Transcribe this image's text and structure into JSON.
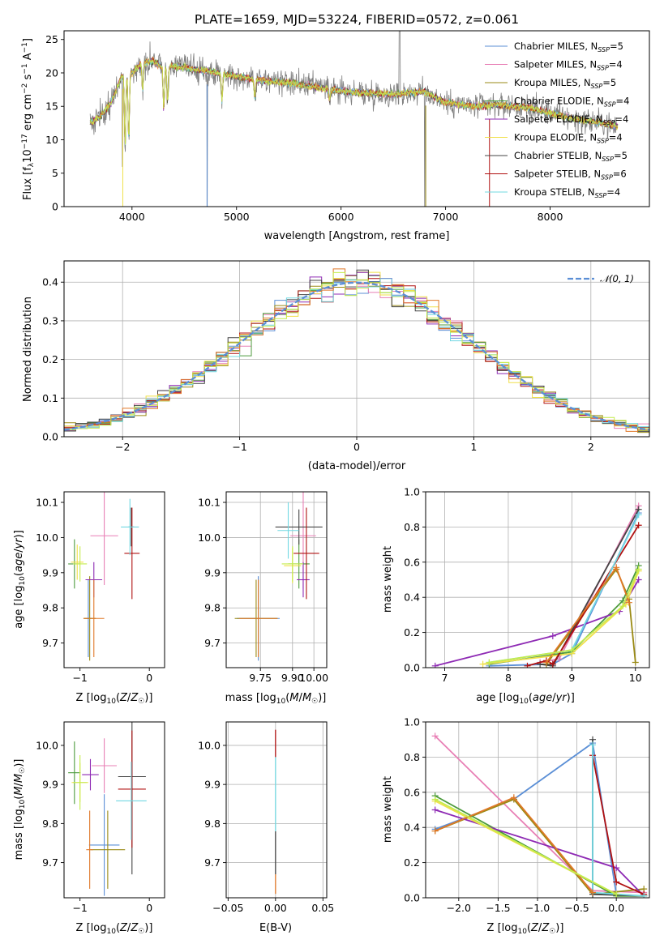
{
  "title": "PLATE=1659, MJD=53224, FIBERID=0572, z=0.061",
  "colors": {
    "Chabrier MILES": "#5b8fd6",
    "Salpeter MILES": "#e87fb5",
    "Kroupa MILES": "#9a8a14",
    "Chabrier ELODIE": "#4c9a3c",
    "Salpeter ELODIE": "#8e2ab4",
    "Kroupa ELODIE": "#f0e04a",
    "Chabrier STELIB": "#444444",
    "Salpeter STELIB": "#b01010",
    "Kroupa STELIB": "#72d8e2",
    "extra_orange": "#e07828",
    "extra_lime": "#c4ec4c",
    "data": "#808080",
    "gaussian": "#5b8fd6"
  },
  "chart_data": [
    {
      "type": "line",
      "panel": "spectrum",
      "xlabel": "wavelength [Angstrom, rest frame]",
      "ylabel": "Flux [f_λ 10^-17 erg cm^-2 s^-1 A^-1]",
      "xlim": [
        3350,
        8950
      ],
      "ylim": [
        0,
        26.3
      ],
      "xticks": [
        4000,
        5000,
        6000,
        7000,
        8000
      ],
      "yticks": [
        0,
        5,
        10,
        15,
        20,
        25
      ],
      "grid": false,
      "legend_position": "top-right",
      "legend": [
        {
          "model": "Chabrier MILES",
          "n_ssp": "5"
        },
        {
          "model": "Salpeter MILES",
          "n_ssp": "4"
        },
        {
          "model": "Kroupa MILES",
          "n_ssp": "5"
        },
        {
          "model": "Chabrier ELODIE",
          "n_ssp": "4"
        },
        {
          "model": "Salpeter ELODIE",
          "n_ssp": "4"
        },
        {
          "model": "Kroupa ELODIE",
          "n_ssp": "4"
        },
        {
          "model": "Chabrier STELIB",
          "n_ssp": "5"
        },
        {
          "model": "Salpeter STELIB",
          "n_ssp": "6"
        },
        {
          "model": "Kroupa STELIB",
          "n_ssp": "4"
        }
      ],
      "continuum": {
        "x": [
          3600,
          3700,
          3800,
          3900,
          4000,
          4100,
          4200,
          4300,
          4400,
          4500,
          4700,
          5000,
          5200,
          5500,
          5800,
          6000,
          6200,
          6500,
          6800,
          7000,
          7300,
          7500,
          7800,
          8000,
          8200,
          8500,
          8650
        ],
        "y": [
          12.5,
          13.5,
          15.5,
          19.5,
          20.0,
          21.5,
          21.8,
          20.8,
          21.0,
          20.8,
          20.3,
          19.5,
          19.0,
          18.5,
          17.8,
          17.3,
          17.0,
          16.8,
          17.2,
          15.5,
          15.0,
          15.2,
          14.8,
          14.0,
          13.2,
          12.5,
          12.0
        ]
      }
    },
    {
      "type": "line",
      "panel": "residuals",
      "xlabel": "(data-model)/error",
      "ylabel": "Normed distribution",
      "xlim": [
        -2.5,
        2.5
      ],
      "ylim": [
        0,
        0.455
      ],
      "xticks": [
        -2,
        -1,
        0,
        1,
        2
      ],
      "yticks": [
        0.0,
        0.1,
        0.2,
        0.3,
        0.4
      ],
      "grid": true,
      "legend_position": "top-right",
      "legend_label": "N(0,1)",
      "bin_width": 0.1
    },
    {
      "type": "scatter",
      "panel": "age-vs-Z",
      "xlabel": "Z [log10(Z/Z☉)]",
      "ylabel": "age [log10(age/yr)]",
      "xlim": [
        -1.23,
        0.22
      ],
      "ylim": [
        9.63,
        10.13
      ],
      "xticks": [
        -1,
        0
      ],
      "yticks": [
        9.7,
        9.8,
        9.9,
        10.0,
        10.1
      ],
      "grid": false,
      "points": [
        {
          "model": "Chabrier MILES",
          "x": -0.88,
          "y": 9.77,
          "xerr": 0.05,
          "yerr": 0.11
        },
        {
          "model": "Salpeter MILES",
          "x": -0.65,
          "y": 10.005,
          "xerr": 0.2,
          "yerr": 0.14
        },
        {
          "model": "Kroupa MILES",
          "x": -0.86,
          "y": 9.77,
          "xerr": 0.09,
          "yerr": 0.12
        },
        {
          "model": "Chabrier ELODIE",
          "x": -1.08,
          "y": 9.925,
          "xerr": 0.09,
          "yerr": 0.07
        },
        {
          "model": "Salpeter ELODIE",
          "x": -0.8,
          "y": 9.88,
          "xerr": 0.12,
          "yerr": 0.05
        },
        {
          "model": "Kroupa ELODIE",
          "x": -1.04,
          "y": 9.93,
          "xerr": 0.09,
          "yerr": 0.05
        },
        {
          "model": "Chabrier STELIB",
          "x": -0.26,
          "y": 10.03,
          "xerr": 0.04,
          "yerr": 0.055
        },
        {
          "model": "Salpeter STELIB",
          "x": -0.25,
          "y": 9.955,
          "xerr": 0.11,
          "yerr": 0.13
        },
        {
          "model": "Kroupa STELIB",
          "x": -0.28,
          "y": 10.03,
          "xerr": 0.13,
          "yerr": 0.08
        },
        {
          "model": "extra_orange",
          "x": -0.8,
          "y": 9.77,
          "xerr": 0.15,
          "yerr": 0.11
        },
        {
          "model": "extra_lime",
          "x": -1.0,
          "y": 9.925,
          "xerr": 0.1,
          "yerr": 0.05
        }
      ]
    },
    {
      "type": "scatter",
      "panel": "age-vs-mass",
      "xlabel": "mass [log10(M/M☉)]",
      "ylabel": "",
      "xlim": [
        9.59,
        10.06
      ],
      "ylim": [
        9.63,
        10.13
      ],
      "xticks": [
        9.75,
        9.9,
        10.0
      ],
      "tick_labels": [
        "9.75",
        "9.90",
        "10.00"
      ],
      "yticks": [
        9.7,
        9.8,
        9.9,
        10.0,
        10.1
      ],
      "grid": true,
      "points": [
        {
          "model": "Chabrier MILES",
          "x": 9.74,
          "y": 9.77,
          "xerr": 0.1,
          "yerr": 0.12
        },
        {
          "model": "Salpeter MILES",
          "x": 9.95,
          "y": 10.005,
          "xerr": 0.06,
          "yerr": 0.15
        },
        {
          "model": "Kroupa MILES",
          "x": 9.73,
          "y": 9.77,
          "xerr": 0.1,
          "yerr": 0.11
        },
        {
          "model": "Chabrier ELODIE",
          "x": 9.93,
          "y": 9.925,
          "xerr": 0.05,
          "yerr": 0.07
        },
        {
          "model": "Salpeter ELODIE",
          "x": 9.95,
          "y": 9.88,
          "xerr": 0.03,
          "yerr": 0.05
        },
        {
          "model": "Kroupa ELODIE",
          "x": 9.9,
          "y": 9.92,
          "xerr": 0.04,
          "yerr": 0.05
        },
        {
          "model": "Chabrier STELIB",
          "x": 9.93,
          "y": 10.03,
          "xerr": 0.11,
          "yerr": 0.05
        },
        {
          "model": "Salpeter STELIB",
          "x": 9.965,
          "y": 9.955,
          "xerr": 0.06,
          "yerr": 0.13
        },
        {
          "model": "Kroupa STELIB",
          "x": 9.88,
          "y": 10.02,
          "xerr": 0.05,
          "yerr": 0.08
        },
        {
          "model": "extra_orange",
          "x": 9.74,
          "y": 9.77,
          "xerr": 0.09,
          "yerr": 0.11
        },
        {
          "model": "extra_lime",
          "x": 9.9,
          "y": 9.925,
          "xerr": 0.05,
          "yerr": 0.05
        }
      ]
    },
    {
      "type": "line",
      "panel": "weight-vs-age",
      "xlabel": "age [log10(age/yr)]",
      "ylabel": "mass weight",
      "xlim": [
        6.7,
        10.22
      ],
      "ylim": [
        0,
        1.0
      ],
      "xticks": [
        7,
        8,
        9,
        10
      ],
      "yticks": [
        0.0,
        0.2,
        0.4,
        0.6,
        0.8,
        1.0
      ],
      "grid": true,
      "series": [
        {
          "model": "Chabrier MILES",
          "x": [
            7.7,
            8.7,
            9.0,
            10.05
          ],
          "y": [
            0.01,
            0.02,
            0.08,
            0.88
          ]
        },
        {
          "model": "Salpeter MILES",
          "x": [
            8.5,
            8.8,
            10.05
          ],
          "y": [
            0.03,
            0.05,
            0.92
          ]
        },
        {
          "model": "Kroupa MILES",
          "x": [
            8.6,
            9.7,
            9.9,
            10.0
          ],
          "y": [
            0.02,
            0.56,
            0.39,
            0.03
          ]
        },
        {
          "model": "Chabrier ELODIE",
          "x": [
            7.7,
            9.0,
            9.8,
            10.05
          ],
          "y": [
            0.02,
            0.09,
            0.38,
            0.58
          ]
        },
        {
          "model": "Salpeter ELODIE",
          "x": [
            6.85,
            8.7,
            9.75,
            10.05
          ],
          "y": [
            0.01,
            0.18,
            0.32,
            0.5
          ]
        },
        {
          "model": "Kroupa ELODIE",
          "x": [
            7.6,
            9.0,
            9.85,
            10.05
          ],
          "y": [
            0.02,
            0.08,
            0.36,
            0.55
          ]
        },
        {
          "model": "Chabrier STELIB",
          "x": [
            8.5,
            8.7,
            10.05
          ],
          "y": [
            0.02,
            0.01,
            0.9
          ]
        },
        {
          "model": "Salpeter STELIB",
          "x": [
            8.3,
            8.6,
            8.7,
            10.05
          ],
          "y": [
            0.01,
            0.04,
            0.02,
            0.81
          ]
        },
        {
          "model": "Kroupa STELIB",
          "x": [
            7.7,
            9.0,
            10.05
          ],
          "y": [
            0.03,
            0.1,
            0.87
          ]
        },
        {
          "model": "extra_orange",
          "x": [
            8.6,
            9.7,
            9.9
          ],
          "y": [
            0.03,
            0.57,
            0.37
          ]
        },
        {
          "model": "extra_lime",
          "x": [
            7.7,
            9.0,
            9.8,
            10.05
          ],
          "y": [
            0.03,
            0.1,
            0.35,
            0.56
          ]
        }
      ]
    },
    {
      "type": "scatter",
      "panel": "mass-vs-Z",
      "xlabel": "Z [log10(Z/Z☉)]",
      "ylabel": "mass [log10(M/M☉)]",
      "xlim": [
        -1.23,
        0.22
      ],
      "ylim": [
        9.61,
        10.06
      ],
      "xticks": [
        -1,
        0
      ],
      "yticks": [
        9.7,
        9.8,
        9.9,
        10.0
      ],
      "grid": false,
      "points": [
        {
          "model": "Chabrier MILES",
          "x": -0.65,
          "y": 9.745,
          "xerr": 0.22,
          "yerr": 0.13
        },
        {
          "model": "Salpeter MILES",
          "x": -0.65,
          "y": 9.948,
          "xerr": 0.18,
          "yerr": 0.07
        },
        {
          "model": "Kroupa MILES",
          "x": -0.6,
          "y": 9.733,
          "xerr": 0.25,
          "yerr": 0.1
        },
        {
          "model": "Chabrier ELODIE",
          "x": -1.08,
          "y": 9.93,
          "xerr": 0.09,
          "yerr": 0.08
        },
        {
          "model": "Salpeter ELODIE",
          "x": -0.85,
          "y": 9.925,
          "xerr": 0.12,
          "yerr": 0.04
        },
        {
          "model": "Kroupa ELODIE",
          "x": -1.0,
          "y": 9.905,
          "xerr": 0.12,
          "yerr": 0.05
        },
        {
          "model": "Chabrier STELIB",
          "x": -0.25,
          "y": 9.92,
          "xerr": 0.2,
          "yerr": 0.25
        },
        {
          "model": "Salpeter STELIB",
          "x": -0.25,
          "y": 9.888,
          "xerr": 0.2,
          "yerr": 0.15
        },
        {
          "model": "Kroupa STELIB",
          "x": -0.26,
          "y": 9.858,
          "xerr": 0.22,
          "yerr": 0.1
        },
        {
          "model": "extra_orange",
          "x": -0.86,
          "y": 9.733,
          "xerr": 0.05,
          "yerr": 0.1
        },
        {
          "model": "extra_lime",
          "x": -1.0,
          "y": 9.905,
          "xerr": 0.1,
          "yerr": 0.07
        }
      ]
    },
    {
      "type": "scatter",
      "panel": "mass-vs-EBV",
      "xlabel": "E(B-V)",
      "ylabel": "",
      "xlim": [
        -0.052,
        0.054
      ],
      "ylim": [
        9.61,
        10.06
      ],
      "xticks": [
        -0.05,
        0.0,
        0.05
      ],
      "tick_labels": [
        "−0.05",
        "0.00",
        "0.05"
      ],
      "yticks": [
        9.7,
        9.8,
        9.9,
        10.0
      ],
      "grid": true,
      "segments": [
        {
          "model": "Salpeter STELIB",
          "y": [
            9.97,
            10.04
          ]
        },
        {
          "model": "Kroupa STELIB",
          "y": [
            9.78,
            9.97
          ]
        },
        {
          "model": "Chabrier STELIB",
          "y": [
            9.67,
            9.78
          ]
        },
        {
          "model": "extra_orange",
          "y": [
            9.62,
            9.67
          ]
        }
      ]
    },
    {
      "type": "line",
      "panel": "weight-vs-Z",
      "xlabel": "Z [log10(Z/Z☉)]",
      "ylabel": "mass weight",
      "xlim": [
        -2.42,
        0.42
      ],
      "ylim": [
        0,
        1.0
      ],
      "xticks": [
        -2.0,
        -1.5,
        -1.0,
        -0.5,
        0.0
      ],
      "tick_labels": [
        "−2.0",
        "−1.5",
        "−1.0",
        "−0.5",
        "0.0"
      ],
      "yticks": [
        0.0,
        0.2,
        0.4,
        0.6,
        0.8,
        1.0
      ],
      "grid": true,
      "series": [
        {
          "model": "Chabrier MILES",
          "x": [
            -2.3,
            -1.3,
            -0.3,
            0.0
          ],
          "y": [
            0.39,
            0.56,
            0.88,
            0.02
          ]
        },
        {
          "model": "Salpeter MILES",
          "x": [
            -2.3,
            -0.3,
            0.35
          ],
          "y": [
            0.92,
            0.04,
            0.03
          ]
        },
        {
          "model": "Kroupa MILES",
          "x": [
            -2.3,
            -1.3,
            -0.3,
            0.35
          ],
          "y": [
            0.38,
            0.56,
            0.02,
            0.05
          ]
        },
        {
          "model": "Chabrier ELODIE",
          "x": [
            -2.3,
            0.0,
            0.35
          ],
          "y": [
            0.58,
            0.01,
            0.01
          ]
        },
        {
          "model": "Salpeter ELODIE",
          "x": [
            -2.3,
            0.0,
            0.35
          ],
          "y": [
            0.5,
            0.17,
            0.01
          ]
        },
        {
          "model": "Kroupa ELODIE",
          "x": [
            -2.3,
            0.0,
            0.35
          ],
          "y": [
            0.55,
            0.02,
            0.01
          ]
        },
        {
          "model": "Chabrier STELIB",
          "x": [
            -0.3,
            -0.3,
            0.35
          ],
          "y": [
            0.9,
            0.02,
            0.01
          ]
        },
        {
          "model": "Salpeter STELIB",
          "x": [
            -0.3,
            0.0,
            0.35
          ],
          "y": [
            0.81,
            0.09,
            0.02
          ]
        },
        {
          "model": "Kroupa STELIB",
          "x": [
            -0.3,
            -0.3,
            0.35
          ],
          "y": [
            0.87,
            0.03,
            0.01
          ]
        },
        {
          "model": "extra_orange",
          "x": [
            -2.3,
            -1.3,
            -0.3
          ],
          "y": [
            0.38,
            0.57,
            0.03
          ]
        },
        {
          "model": "extra_lime",
          "x": [
            -2.3,
            0.0
          ],
          "y": [
            0.56,
            0.02
          ]
        }
      ]
    }
  ]
}
